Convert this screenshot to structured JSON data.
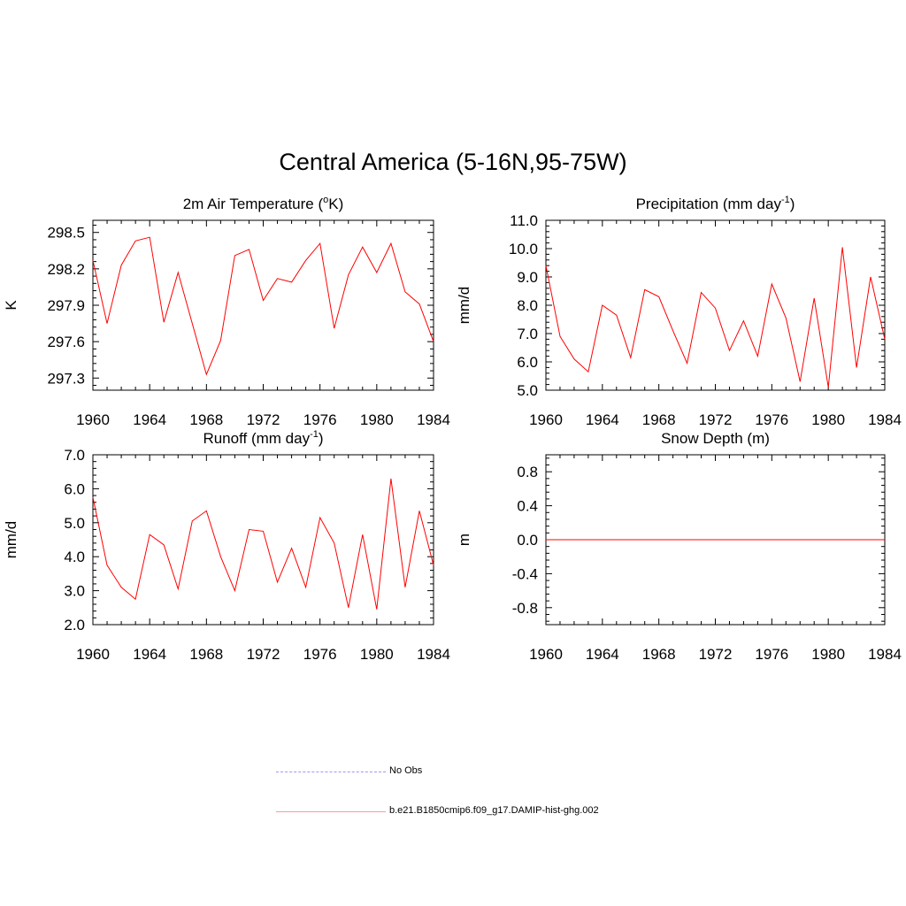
{
  "title": "Central America (5-16N,95-75W)",
  "legend": [
    {
      "label": "No Obs",
      "color": "#9999ff",
      "style": "dashed"
    },
    {
      "label": "b.e21.B1850cmip6.f09_g17.DAMIP-hist-ghg.002",
      "color": "#ff0000",
      "style": "solid"
    }
  ],
  "colors": {
    "series": "#ff0000",
    "axis": "#000000"
  },
  "chart_data": [
    {
      "type": "line",
      "title": "2m Air Temperature (",
      "title_sup": "o",
      "title_tail": "K)",
      "xlabel": "",
      "ylabel": "K",
      "xlim": [
        1960,
        1984
      ],
      "ylim": [
        297.2,
        298.6
      ],
      "xticks": [
        "1960",
        "1964",
        "1968",
        "1972",
        "1976",
        "1980",
        "1984"
      ],
      "yticks": [
        "297.3",
        "297.6",
        "297.9",
        "298.2",
        "298.5"
      ],
      "x": [
        1960,
        1961,
        1962,
        1963,
        1964,
        1965,
        1966,
        1967,
        1968,
        1969,
        1970,
        1971,
        1972,
        1973,
        1974,
        1975,
        1976,
        1977,
        1978,
        1979,
        1980,
        1981,
        1982,
        1983,
        1984
      ],
      "series": [
        {
          "values": [
            298.27,
            297.75,
            298.23,
            298.43,
            298.46,
            297.76,
            298.17,
            297.75,
            297.33,
            297.61,
            298.31,
            298.36,
            297.94,
            298.12,
            298.09,
            298.27,
            298.41,
            297.71,
            298.15,
            298.38,
            298.17,
            298.41,
            298.01,
            297.91,
            297.6
          ]
        }
      ]
    },
    {
      "type": "line",
      "title": "Precipitation (mm day",
      "title_sup": "-1",
      "title_tail": ")",
      "xlabel": "",
      "ylabel": "mm/d",
      "xlim": [
        1960,
        1984
      ],
      "ylim": [
        5.0,
        11.0
      ],
      "xticks": [
        "1960",
        "1964",
        "1968",
        "1972",
        "1976",
        "1980",
        "1984"
      ],
      "yticks": [
        "5.0",
        "6.0",
        "7.0",
        "8.0",
        "9.0",
        "10.0",
        "11.0"
      ],
      "x": [
        1960,
        1961,
        1962,
        1963,
        1964,
        1965,
        1966,
        1967,
        1968,
        1969,
        1970,
        1971,
        1972,
        1973,
        1974,
        1975,
        1976,
        1977,
        1978,
        1979,
        1980,
        1981,
        1982,
        1983,
        1984
      ],
      "series": [
        {
          "values": [
            9.4,
            6.9,
            6.1,
            5.65,
            8.0,
            7.65,
            6.15,
            8.55,
            8.3,
            7.1,
            5.95,
            8.45,
            7.9,
            6.4,
            7.45,
            6.2,
            8.75,
            7.55,
            5.3,
            8.25,
            5.1,
            10.05,
            5.8,
            9.0,
            6.8
          ]
        }
      ]
    },
    {
      "type": "line",
      "title": "Runoff (mm day",
      "title_sup": "-1",
      "title_tail": ")",
      "xlabel": "",
      "ylabel": "mm/d",
      "xlim": [
        1960,
        1984
      ],
      "ylim": [
        2.0,
        7.0
      ],
      "xticks": [
        "1960",
        "1964",
        "1968",
        "1972",
        "1976",
        "1980",
        "1984"
      ],
      "yticks": [
        "2.0",
        "3.0",
        "4.0",
        "5.0",
        "6.0",
        "7.0"
      ],
      "x": [
        1960,
        1961,
        1962,
        1963,
        1964,
        1965,
        1966,
        1967,
        1968,
        1969,
        1970,
        1971,
        1972,
        1973,
        1974,
        1975,
        1976,
        1977,
        1978,
        1979,
        1980,
        1981,
        1982,
        1983,
        1984
      ],
      "series": [
        {
          "values": [
            5.75,
            3.75,
            3.1,
            2.75,
            4.65,
            4.35,
            3.05,
            5.05,
            5.35,
            4.0,
            3.0,
            4.8,
            4.75,
            3.25,
            4.25,
            3.1,
            5.15,
            4.4,
            2.5,
            4.65,
            2.45,
            6.3,
            3.1,
            5.35,
            3.75
          ]
        }
      ]
    },
    {
      "type": "line",
      "title": "Snow Depth (m)",
      "title_sup": "",
      "title_tail": "",
      "xlabel": "",
      "ylabel": "m",
      "xlim": [
        1960,
        1984
      ],
      "ylim": [
        -1.0,
        1.0
      ],
      "xticks": [
        "1960",
        "1964",
        "1968",
        "1972",
        "1976",
        "1980",
        "1984"
      ],
      "yticks": [
        "-0.8",
        "-0.4",
        "0.0",
        "0.4",
        "0.8"
      ],
      "x": [
        1960,
        1961,
        1962,
        1963,
        1964,
        1965,
        1966,
        1967,
        1968,
        1969,
        1970,
        1971,
        1972,
        1973,
        1974,
        1975,
        1976,
        1977,
        1978,
        1979,
        1980,
        1981,
        1982,
        1983,
        1984
      ],
      "series": [
        {
          "values": [
            0,
            0,
            0,
            0,
            0,
            0,
            0,
            0,
            0,
            0,
            0,
            0,
            0,
            0,
            0,
            0,
            0,
            0,
            0,
            0,
            0,
            0,
            0,
            0,
            0
          ]
        }
      ]
    }
  ]
}
